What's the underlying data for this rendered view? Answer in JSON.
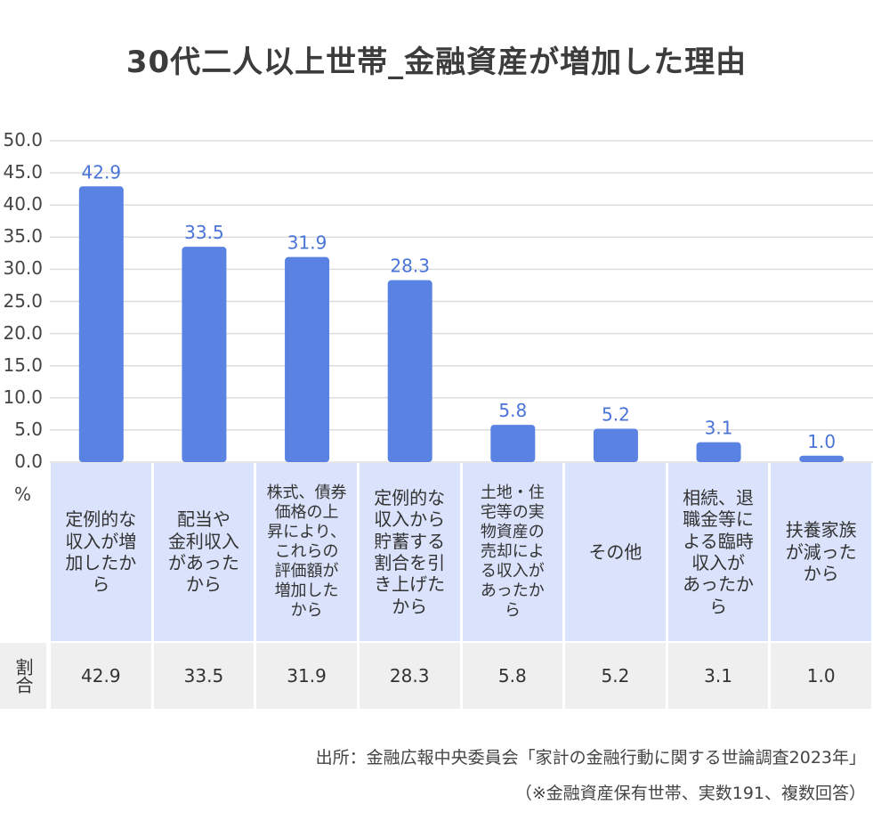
{
  "chart_data": {
    "type": "bar",
    "title": "30代二人以上世帯_金融資産が増加した理由",
    "ylabel": "%",
    "ylim": [
      0,
      50
    ],
    "yticks": [
      "0.0",
      "5.0",
      "10.0",
      "15.0",
      "20.0",
      "25.0",
      "30.0",
      "35.0",
      "40.0",
      "45.0",
      "50.0"
    ],
    "grid": true,
    "categories": [
      "定例的な収入が増加したから",
      "配当や金利収入があったから",
      "株式、債券価格の上昇により、これらの評価額が増加したから",
      "定例的な収入から貯蓄する割合を引き上げたから",
      "土地・住宅等の実物資産の売却による収入があったから",
      "その他",
      "相続、退職金等による臨時収入があったから",
      "扶養家族が減ったから"
    ],
    "category_lines": [
      [
        "定例的な",
        "収入が増",
        "加したか",
        "ら"
      ],
      [
        "配当や",
        "金利収入",
        "があった",
        "から"
      ],
      [
        "株式、債券",
        "価格の上",
        "昇により、",
        "これらの",
        "評価額が",
        "増加した",
        "から"
      ],
      [
        "定例的な",
        "収入から",
        "貯蓄する",
        "割合を引",
        "き上げた",
        "から"
      ],
      [
        "土地・住",
        "宅等の実",
        "物資産の",
        "売却によ",
        "る収入が",
        "あったか",
        "ら"
      ],
      [
        "その他"
      ],
      [
        "相続、退",
        "職金等に",
        "よる臨時",
        "収入が",
        "あったか",
        "ら"
      ],
      [
        "扶養家族",
        "が減った",
        "から"
      ]
    ],
    "values": [
      42.9,
      33.5,
      31.9,
      28.3,
      5.8,
      5.2,
      3.1,
      1.0
    ],
    "value_labels": [
      "42.9",
      "33.5",
      "31.9",
      "28.3",
      "5.8",
      "5.2",
      "3.1",
      "1.0"
    ],
    "row_label": "割合",
    "colors": {
      "bar": "#5a82e3",
      "label": "#4a74d8",
      "grid": "#dddddd",
      "category_bg": "#dae3fb",
      "row_bg": "#efefef"
    }
  },
  "source": "出所：金融広報中央委員会「家計の金融行動に関する世論調査2023年」",
  "note": "（※金融資産保有世帯、実数191、複数回答）"
}
